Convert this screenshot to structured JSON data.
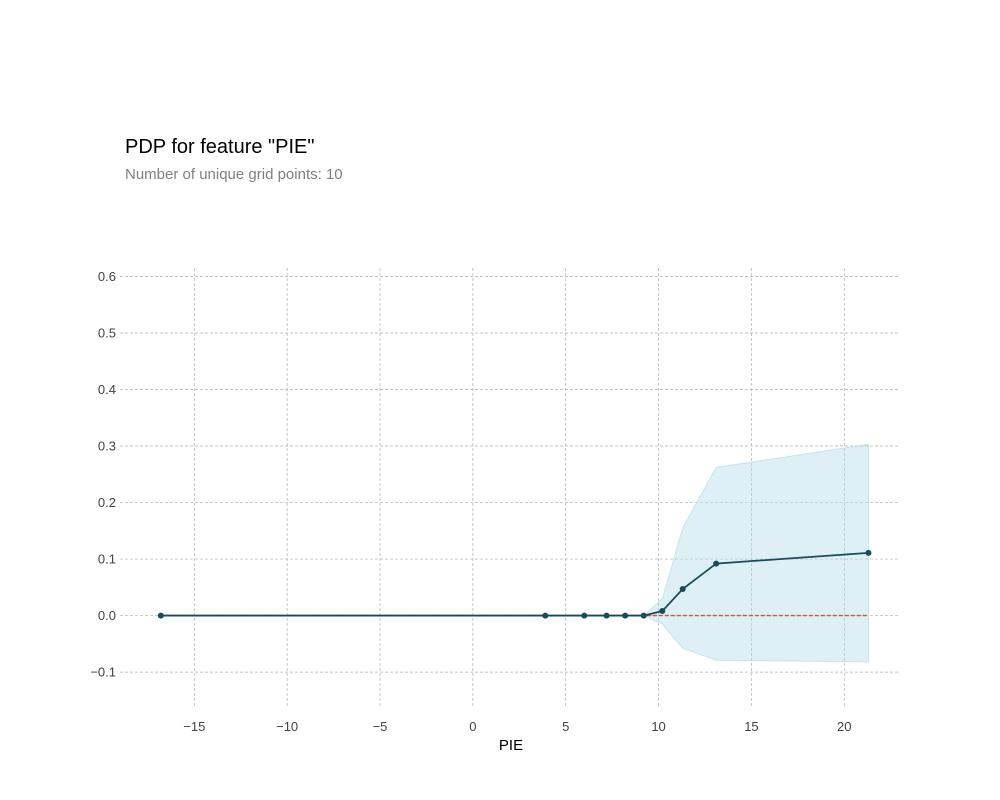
{
  "header": {
    "title": "PDP for feature \"PIE\"",
    "subtitle": "Number of unique grid points: 10"
  },
  "colors": {
    "line": "#1a4b5a",
    "band": "#add8e6",
    "baseline": "#d9503c",
    "grid": "#b0b0b0"
  },
  "chart_data": {
    "type": "line",
    "title": "PDP for feature \"PIE\"",
    "subtitle": "Number of unique grid points: 10",
    "xlabel": "PIE",
    "ylabel": "",
    "xlim": [
      -19,
      23
    ],
    "ylim": [
      -0.16,
      0.615
    ],
    "xticks": [
      -15,
      -10,
      -5,
      0,
      5,
      10,
      15,
      20
    ],
    "yticks": [
      -0.1,
      0.0,
      0.1,
      0.2,
      0.3,
      0.4,
      0.5,
      0.6
    ],
    "xtick_labels": [
      "−15",
      "−10",
      "−5",
      "0",
      "5",
      "10",
      "15",
      "20"
    ],
    "ytick_labels": [
      "−0.1",
      "0.0",
      "0.1",
      "0.2",
      "0.3",
      "0.4",
      "0.5",
      "0.6"
    ],
    "grid": true,
    "series": [
      {
        "x": [
          -16.8,
          3.9,
          6.0,
          7.2,
          8.2,
          9.2,
          10.2,
          11.3,
          13.1,
          21.3
        ],
        "values": [
          0.0,
          0.0,
          0.0,
          0.0,
          0.0,
          0.0,
          0.008,
          0.047,
          0.092,
          0.111
        ],
        "upper": [
          0.0,
          0.0,
          0.0,
          0.0,
          0.0,
          0.0,
          0.03,
          0.155,
          0.262,
          0.303
        ],
        "lower": [
          0.0,
          0.0,
          0.0,
          0.0,
          0.0,
          0.0,
          -0.015,
          -0.058,
          -0.079,
          -0.082
        ]
      }
    ],
    "baseline": 0.0
  }
}
